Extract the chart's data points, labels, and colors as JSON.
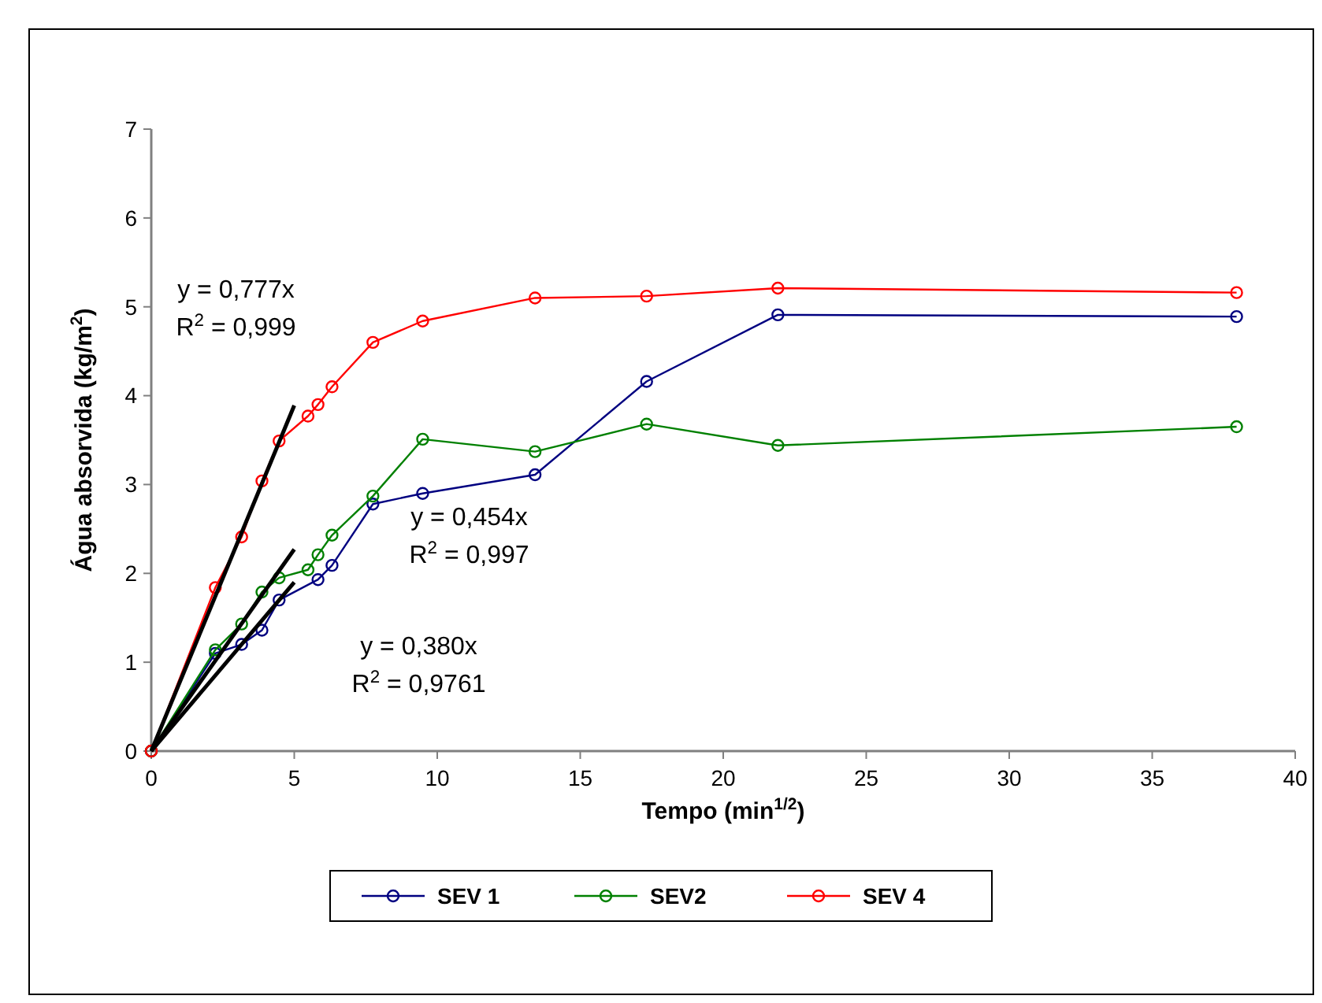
{
  "chart_data": {
    "type": "line",
    "xlabel": "Tempo (min$^{1/2}$)",
    "ylabel": "Água absorvida (kg/m$^{2}$)",
    "xlim": [
      0,
      40
    ],
    "ylim": [
      0,
      7
    ],
    "xticks": [
      0,
      5,
      10,
      15,
      20,
      25,
      30,
      35,
      40
    ],
    "yticks": [
      0,
      1,
      2,
      3,
      4,
      5,
      6,
      7
    ],
    "grid": false,
    "legend": "bottom",
    "marker": "circle",
    "line_style": "solid",
    "series": [
      {
        "name": "SEV 1",
        "color": "#000080",
        "x": [
          0,
          2.24,
          3.16,
          3.87,
          4.47,
          5.83,
          6.32,
          7.75,
          9.49,
          13.42,
          17.32,
          21.91,
          37.95
        ],
        "values": [
          0,
          1.1,
          1.2,
          1.36,
          1.7,
          1.93,
          2.09,
          2.78,
          2.9,
          3.11,
          4.16,
          4.91,
          4.89
        ]
      },
      {
        "name": "SEV2",
        "color": "#008000",
        "x": [
          0,
          2.24,
          3.16,
          3.87,
          4.47,
          5.48,
          5.83,
          6.32,
          7.75,
          9.49,
          13.42,
          17.32,
          21.91,
          37.95
        ],
        "values": [
          0,
          1.14,
          1.43,
          1.79,
          1.95,
          2.04,
          2.21,
          2.43,
          2.87,
          3.51,
          3.37,
          3.68,
          3.44,
          3.65
        ]
      },
      {
        "name": "SEV 4",
        "color": "#ff0000",
        "x": [
          0,
          2.24,
          3.16,
          3.87,
          4.47,
          5.48,
          5.83,
          6.32,
          7.75,
          9.49,
          13.42,
          17.32,
          21.91,
          37.95
        ],
        "values": [
          0,
          1.84,
          2.41,
          3.04,
          3.49,
          3.77,
          3.9,
          4.1,
          4.6,
          4.84,
          5.1,
          5.12,
          5.21,
          5.16
        ]
      },
      {
        "type": "line",
        "color": "#000000",
        "marker": "none",
        "x": [
          0,
          5
        ],
        "values": [
          0,
          3.89
        ]
      },
      {
        "type": "line",
        "color": "#000000",
        "marker": "none",
        "x": [
          0,
          5
        ],
        "values": [
          0,
          2.27
        ]
      },
      {
        "type": "line",
        "color": "#000000",
        "marker": "none",
        "x": [
          0,
          5
        ],
        "values": [
          0,
          1.9
        ]
      }
    ],
    "annotations": [
      "y = 0,777x\nR$^{2}$ = 0,999",
      "y = 0,454x\nR$^{2}$ = 0,997",
      "y = 0,380x\nR$^{2}$ = 0,9761"
    ]
  }
}
